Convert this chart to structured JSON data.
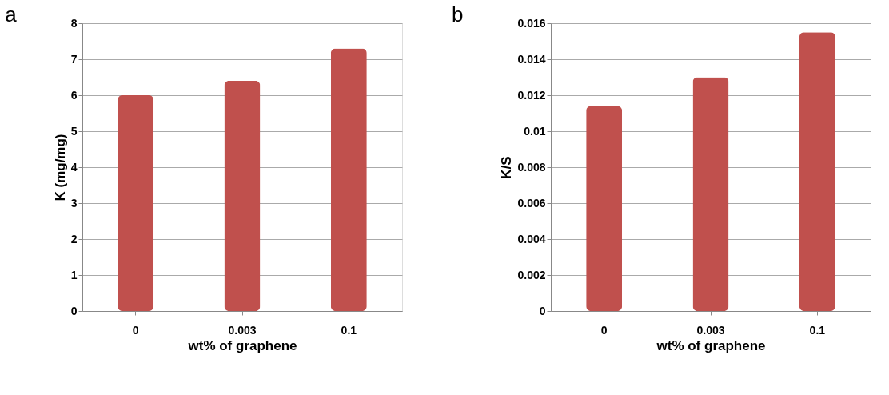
{
  "chart_data": [
    {
      "type": "bar",
      "title": "a",
      "xlabel": "wt% of graphene",
      "ylabel": "K (mg/mg)",
      "categories": [
        "0",
        "0.003",
        "0.1"
      ],
      "values": [
        6.0,
        6.4,
        7.3
      ],
      "color": "#c0504d",
      "ylim": [
        0,
        8
      ],
      "yticks": [
        0,
        1,
        2,
        3,
        4,
        5,
        6,
        7,
        8
      ],
      "grid": "y"
    },
    {
      "type": "bar",
      "title": "b",
      "xlabel": "wt% of graphene",
      "ylabel": "K/S",
      "categories": [
        "0",
        "0.003",
        "0.1"
      ],
      "values": [
        0.0114,
        0.013,
        0.0155
      ],
      "color": "#c0504d",
      "ylim": [
        0,
        0.016
      ],
      "yticks": [
        0,
        0.002,
        0.004,
        0.006,
        0.008,
        0.01,
        0.012,
        0.014,
        0.016
      ],
      "grid": "y"
    }
  ]
}
